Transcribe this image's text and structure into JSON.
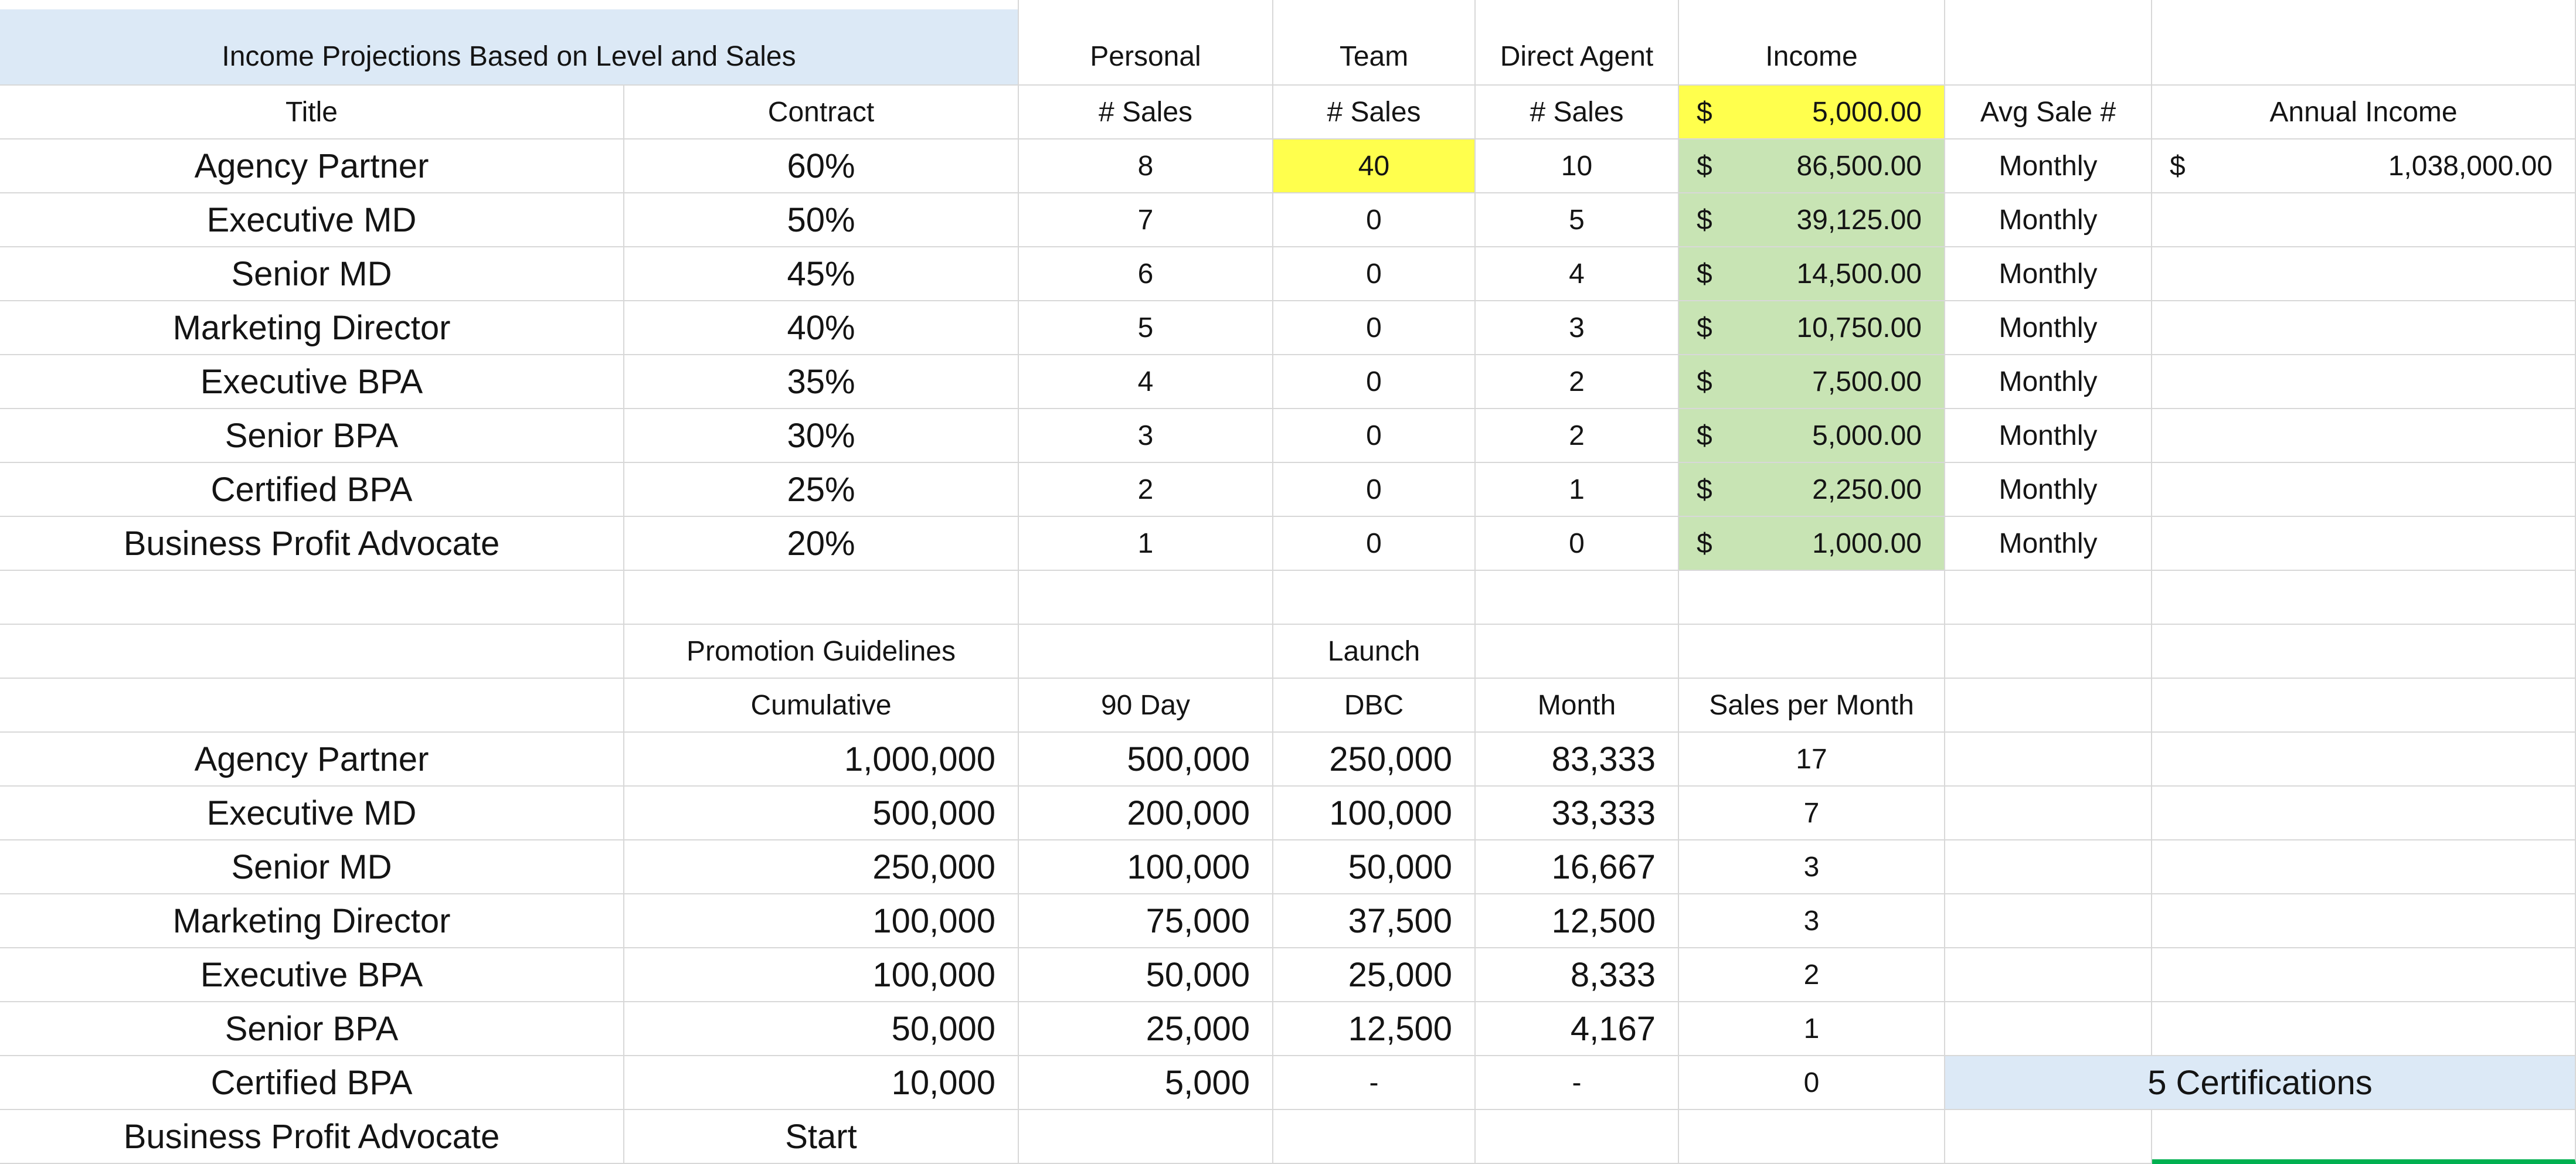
{
  "currency": "$",
  "colors": {
    "header-blue": "#DCE9F6",
    "highlight-yellow": "#FFFF4D",
    "income-green": "#C8E4B4",
    "cert-blue": "#DCE9F6",
    "gridline": "#D8D8D8",
    "selection-green": "#00B050",
    "text": "#141414"
  },
  "section1": {
    "title": "Income Projections  Based on Level and Sales",
    "groups": {
      "personal": "Personal",
      "team": "Team",
      "direct_agent": "Direct Agent",
      "income": "Income"
    },
    "headers": {
      "title": "Title",
      "contract": "Contract",
      "sales": "# Sales",
      "avg_sale_value": "5,000.00",
      "avg_sale_label": "Avg Sale #",
      "annual_income": "Annual Income"
    },
    "rows": [
      {
        "title": "Agency Partner",
        "contract": "60%",
        "personal": "8",
        "team": "40",
        "direct": "10",
        "income": "86,500.00",
        "period": "Monthly",
        "annual": "1,038,000.00"
      },
      {
        "title": "Executive MD",
        "contract": "50%",
        "personal": "7",
        "team": "0",
        "direct": "5",
        "income": "39,125.00",
        "period": "Monthly"
      },
      {
        "title": "Senior MD",
        "contract": "45%",
        "personal": "6",
        "team": "0",
        "direct": "4",
        "income": "14,500.00",
        "period": "Monthly"
      },
      {
        "title": "Marketing Director",
        "contract": "40%",
        "personal": "5",
        "team": "0",
        "direct": "3",
        "income": "10,750.00",
        "period": "Monthly"
      },
      {
        "title": "Executive BPA",
        "contract": "35%",
        "personal": "4",
        "team": "0",
        "direct": "2",
        "income": "7,500.00",
        "period": "Monthly"
      },
      {
        "title": "Senior BPA",
        "contract": "30%",
        "personal": "3",
        "team": "0",
        "direct": "2",
        "income": "5,000.00",
        "period": "Monthly"
      },
      {
        "title": "Certified BPA",
        "contract": "25%",
        "personal": "2",
        "team": "0",
        "direct": "1",
        "income": "2,250.00",
        "period": "Monthly"
      },
      {
        "title": "Business Profit Advocate",
        "contract": "20%",
        "personal": "1",
        "team": "0",
        "direct": "0",
        "income": "1,000.00",
        "period": "Monthly"
      }
    ]
  },
  "section2": {
    "promo_header": "Promotion Guidelines",
    "launch_header": "Launch",
    "headers": {
      "cumulative": "Cumulative",
      "day_90": "90 Day",
      "dbc": "DBC",
      "month": "Month",
      "sales_per_month": "Sales per Month"
    },
    "rows": [
      {
        "title": "Agency Partner",
        "cumulative": "1,000,000",
        "day_90": "500,000",
        "dbc": "250,000",
        "month": "83,333",
        "sales_per_month": "17"
      },
      {
        "title": "Executive MD",
        "cumulative": "500,000",
        "day_90": "200,000",
        "dbc": "100,000",
        "month": "33,333",
        "sales_per_month": "7"
      },
      {
        "title": "Senior MD",
        "cumulative": "250,000",
        "day_90": "100,000",
        "dbc": "50,000",
        "month": "16,667",
        "sales_per_month": "3"
      },
      {
        "title": "Marketing Director",
        "cumulative": "100,000",
        "day_90": "75,000",
        "dbc": "37,500",
        "month": "12,500",
        "sales_per_month": "3"
      },
      {
        "title": "Executive BPA",
        "cumulative": "100,000",
        "day_90": "50,000",
        "dbc": "25,000",
        "month": "8,333",
        "sales_per_month": "2"
      },
      {
        "title": "Senior BPA",
        "cumulative": "50,000",
        "day_90": "25,000",
        "dbc": "12,500",
        "month": "4,167",
        "sales_per_month": "1"
      },
      {
        "title": "Certified BPA",
        "cumulative": "10,000",
        "day_90": "5,000",
        "dbc": "-",
        "month": "-",
        "sales_per_month": "0"
      },
      {
        "title": "Business Profit Advocate",
        "cumulative": "Start"
      }
    ],
    "certifications": "5 Certifications"
  }
}
